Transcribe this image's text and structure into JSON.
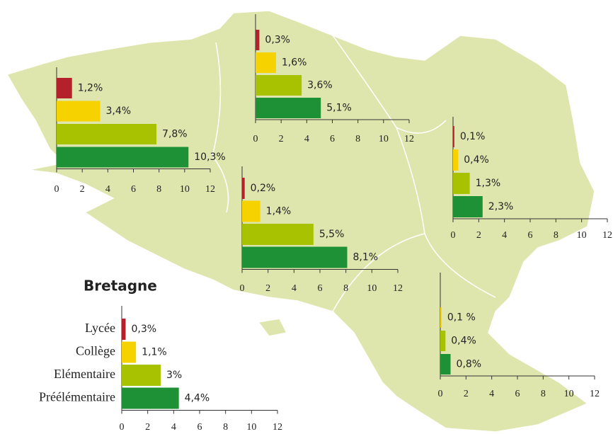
{
  "chart_data": [
    {
      "type": "bar",
      "categories": [
        null,
        null,
        null,
        null
      ],
      "values": [
        1.2,
        3.4,
        7.8,
        10.3
      ],
      "value_labels": [
        "1,2%",
        "3,4%",
        "7,8%",
        "10,3%"
      ],
      "colors": [
        "#b5212b",
        "#f5d200",
        "#a8c100",
        "#1e9136"
      ],
      "xlim": [
        0,
        12
      ],
      "xticks": [
        0,
        2,
        4,
        6,
        8,
        10,
        12
      ]
    },
    {
      "type": "bar",
      "categories": [
        null,
        null,
        null,
        null
      ],
      "values": [
        0.3,
        1.6,
        3.6,
        5.1
      ],
      "value_labels": [
        "0,3%",
        "1,6%",
        "3,6%",
        "5,1%"
      ],
      "colors": [
        "#b5212b",
        "#f5d200",
        "#a8c100",
        "#1e9136"
      ],
      "xlim": [
        0,
        12
      ],
      "xticks": [
        0,
        2,
        4,
        6,
        8,
        10,
        12
      ]
    },
    {
      "type": "bar",
      "categories": [
        null,
        null,
        null,
        null
      ],
      "values": [
        0.1,
        0.4,
        1.3,
        2.3
      ],
      "value_labels": [
        "0,1%",
        "0,4%",
        "1,3%",
        "2,3%"
      ],
      "colors": [
        "#b5212b",
        "#f5d200",
        "#a8c100",
        "#1e9136"
      ],
      "xlim": [
        0,
        12
      ],
      "xticks": [
        0,
        2,
        4,
        6,
        8,
        10,
        12
      ]
    },
    {
      "type": "bar",
      "categories": [
        null,
        null,
        null,
        null
      ],
      "values": [
        0.2,
        1.4,
        5.5,
        8.1
      ],
      "value_labels": [
        "0,2%",
        "1,4%",
        "5,5%",
        "8,1%"
      ],
      "colors": [
        "#b5212b",
        "#f5d200",
        "#a8c100",
        "#1e9136"
      ],
      "xlim": [
        0,
        12
      ],
      "xticks": [
        0,
        2,
        4,
        6,
        8,
        10,
        12
      ]
    },
    {
      "type": "bar",
      "categories": [
        null,
        null,
        null
      ],
      "values": [
        0.1,
        0.4,
        0.8
      ],
      "value_labels": [
        "0,1 %",
        "0,4%",
        "0,8%"
      ],
      "colors": [
        "#f5d200",
        "#a8c100",
        "#1e9136"
      ],
      "xlim": [
        0,
        12
      ],
      "xticks": [
        0,
        2,
        4,
        6,
        8,
        10,
        12
      ]
    },
    {
      "type": "bar",
      "title": "Bretagne",
      "categories": [
        "Lycée",
        "Collège",
        "Elémentaire",
        "Préélémentaire"
      ],
      "values": [
        0.3,
        1.1,
        3,
        4.4
      ],
      "value_labels": [
        "0,3%",
        "1,1%",
        "3%",
        "4,4%"
      ],
      "colors": [
        "#b5212b",
        "#f5d200",
        "#a8c100",
        "#1e9136"
      ],
      "xlim": [
        0,
        12
      ],
      "xticks": [
        0,
        2,
        4,
        6,
        8,
        10,
        12
      ]
    }
  ]
}
